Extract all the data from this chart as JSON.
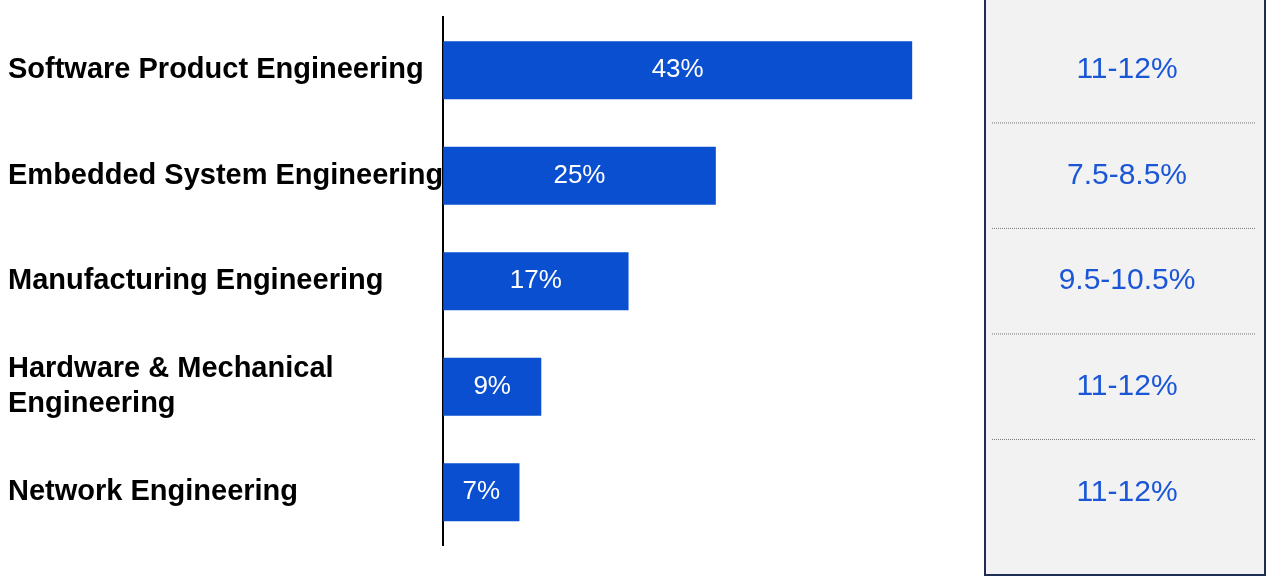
{
  "chart_data": {
    "type": "bar",
    "orientation": "horizontal",
    "categories": [
      "Software Product Engineering",
      "Embedded System Engineering",
      "Manufacturing Engineering",
      "Hardware & Mechanical Engineering",
      "Network Engineering"
    ],
    "values": [
      43,
      25,
      17,
      9,
      7
    ],
    "color": "#0a4fcf",
    "value_labels": [
      "43%",
      "25%",
      "17%",
      "9%",
      "7%"
    ],
    "tick_labels": "y",
    "grid": false,
    "legend": false,
    "annotations": [
      "11-12%",
      "7.5-8.5%",
      "9.5-10.5%",
      "11-12%",
      "11-12%"
    ]
  }
}
